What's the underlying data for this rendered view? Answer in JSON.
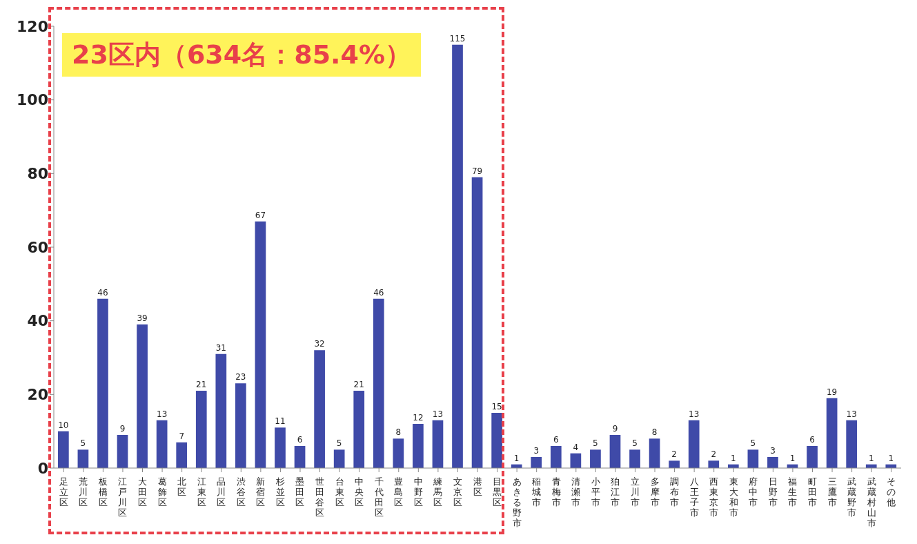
{
  "chart_data": {
    "type": "bar",
    "categories": [
      "足立区",
      "荒川区",
      "板橋区",
      "江戸川区",
      "大田区",
      "葛飾区",
      "北区",
      "江東区",
      "品川区",
      "渋谷区",
      "新宿区",
      "杉並区",
      "墨田区",
      "世田谷区",
      "台東区",
      "中央区",
      "千代田区",
      "豊島区",
      "中野区",
      "練馬区",
      "文京区",
      "港区",
      "目黒区",
      "あきる野市",
      "稲城市",
      "青梅市",
      "清瀬市",
      "小平市",
      "狛江市",
      "立川市",
      "多摩市",
      "調布市",
      "八王子市",
      "西東京市",
      "東大和市",
      "府中市",
      "日野市",
      "福生市",
      "町田市",
      "三鷹市",
      "武蔵野市",
      "武蔵村山市",
      "その他"
    ],
    "values": [
      10,
      5,
      46,
      9,
      39,
      13,
      7,
      21,
      31,
      23,
      67,
      11,
      6,
      32,
      5,
      21,
      46,
      8,
      12,
      13,
      115,
      79,
      15,
      1,
      3,
      6,
      4,
      5,
      9,
      5,
      8,
      2,
      13,
      2,
      1,
      5,
      3,
      1,
      6,
      19,
      13,
      1,
      1
    ],
    "color": "#3f4aa8",
    "ylim": [
      0,
      120
    ],
    "yticks": [
      0,
      20,
      40,
      60,
      80,
      100,
      120
    ],
    "grid": false,
    "legend": false,
    "data_labels": true,
    "annotations": [
      "23区内（634名：85.4%）"
    ]
  }
}
